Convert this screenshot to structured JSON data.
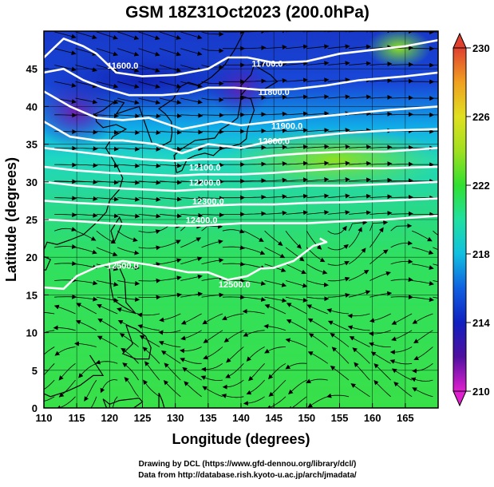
{
  "title": "GSM 18Z31Oct2023 (200.0hPa)",
  "xaxis": {
    "label": "Longitude (degrees)",
    "ticks": [
      110,
      115,
      120,
      125,
      130,
      135,
      140,
      145,
      150,
      155,
      160,
      165
    ],
    "range": [
      110,
      170
    ]
  },
  "yaxis": {
    "label": "Latitude (degrees)",
    "ticks": [
      0,
      5,
      10,
      15,
      20,
      25,
      30,
      35,
      40,
      45
    ],
    "range": [
      0,
      50
    ]
  },
  "colorbar": {
    "ticks": [
      210,
      214,
      218,
      222,
      226,
      230
    ],
    "range": [
      210,
      230
    ],
    "stops": [
      "#e020d0",
      "#5010a0",
      "#1020c0",
      "#1060e0",
      "#10c0e0",
      "#20e0a0",
      "#30e030",
      "#a0e020",
      "#e0e020",
      "#f0a020",
      "#e04030"
    ]
  },
  "contours": {
    "labels": [
      {
        "text": "11600.0",
        "lon": 122,
        "lat": 45
      },
      {
        "text": "11700.0",
        "lon": 144,
        "lat": 45.3
      },
      {
        "text": "11800.0",
        "lon": 145,
        "lat": 41.5
      },
      {
        "text": "11900.0",
        "lon": 147,
        "lat": 37
      },
      {
        "text": "12000.0",
        "lon": 145,
        "lat": 35
      },
      {
        "text": "12100.0",
        "lon": 134.5,
        "lat": 31.5
      },
      {
        "text": "12200.0",
        "lon": 134.5,
        "lat": 29.5
      },
      {
        "text": "12300.0",
        "lon": 135,
        "lat": 27
      },
      {
        "text": "12400.0",
        "lon": 134,
        "lat": 24.5
      },
      {
        "text": "12500.0",
        "lon": 122,
        "lat": 18.5
      },
      {
        "text": "12500.0",
        "lon": 139,
        "lat": 16
      }
    ]
  },
  "footer": {
    "line1": "Drawing by DCL (https://www.gfd-dennou.org/library/dcl/)",
    "line2": "Data from http://database.rish.kyoto-u.ac.jp/arch/jmadata/"
  }
}
